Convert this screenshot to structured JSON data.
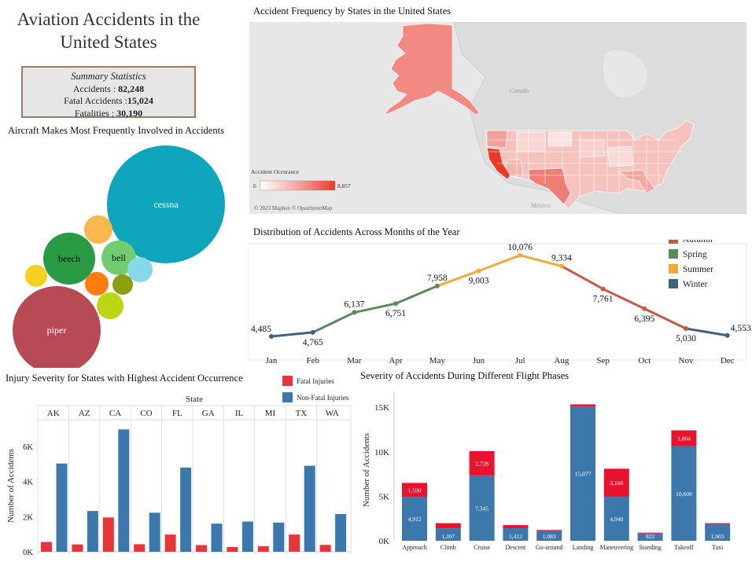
{
  "dashboard": {
    "title": "Aviation Accidents in the United States"
  },
  "summary": {
    "heading": "Summary Statistics",
    "accidents_label": "Accidents : ",
    "accidents_value": "82,248",
    "fatal_label": "Fatal Accidents :",
    "fatal_value": "15,024",
    "fatalities_label": "Fatalities : ",
    "fatalities_value": "30,190"
  },
  "bubbles": {
    "title": "Aircraft Makes Most Frequently Involved in Accidents",
    "items": [
      {
        "label": "cessna",
        "color": "#0fa5bd"
      },
      {
        "label": "piper",
        "color": "#b84a55"
      },
      {
        "label": "beech",
        "color": "#2a9a45"
      },
      {
        "label": "bell",
        "color": "#72cd72"
      },
      {
        "label": "",
        "color": "#f8b84e"
      },
      {
        "label": "",
        "color": "#f7cf1f"
      },
      {
        "label": "",
        "color": "#ff7c10"
      },
      {
        "label": "",
        "color": "#8c9e12"
      },
      {
        "label": "",
        "color": "#bcd515"
      },
      {
        "label": "",
        "color": "#86d8e8"
      }
    ]
  },
  "map": {
    "title": "Accident Frequency by States in the United States",
    "legend_title": "Accident Occurance",
    "legend_min": "6",
    "legend_max": "8,857",
    "credit": "© 2023 Mapbox © OpenStreetMap",
    "label_canada": "Canada",
    "label_mexico": "México",
    "colors": {
      "low": "#fbe3e1",
      "mid": "#f0928a",
      "high": "#e8392a"
    }
  },
  "chart_data": [
    {
      "type": "line",
      "title": "Distribution of Accidents Across Months of the Year",
      "categories": [
        "Jan",
        "Feb",
        "Mar",
        "Apr",
        "May",
        "Jun",
        "Jul",
        "Aug",
        "Sep",
        "Oct",
        "Nov",
        "Dec"
      ],
      "values": [
        4485,
        4765,
        6137,
        6751,
        7958,
        9003,
        10076,
        9334,
        7761,
        6395,
        5030,
        4553
      ],
      "value_labels": [
        "4,485",
        "4,765",
        "6,137",
        "6,751",
        "7,958",
        "9,003",
        "10,076",
        "9,334",
        "7,761",
        "6,395",
        "5,030",
        "4,553"
      ],
      "season_of_month": [
        "Winter",
        "Winter",
        "Spring",
        "Spring",
        "Spring",
        "Summer",
        "Summer",
        "Summer",
        "Autumn",
        "Autumn",
        "Autumn",
        "Winter"
      ],
      "legend": [
        {
          "name": "Autumn",
          "color": "#c7594a"
        },
        {
          "name": "Spring",
          "color": "#5a8a5c"
        },
        {
          "name": "Summer",
          "color": "#f4a93a"
        },
        {
          "name": "Winter",
          "color": "#41627e"
        }
      ],
      "ylim": [
        4000,
        10500
      ]
    },
    {
      "type": "bar",
      "title": "Injury Severity for States with Highest Accident Occurrence",
      "facet_label": "State",
      "categories": [
        "AK",
        "AZ",
        "CA",
        "CO",
        "FL",
        "GA",
        "IL",
        "MI",
        "TX",
        "WA"
      ],
      "series": [
        {
          "name": "Fatal Injuries",
          "color": "#e8353c",
          "values": [
            560,
            420,
            1950,
            430,
            980,
            380,
            270,
            320,
            980,
            390
          ]
        },
        {
          "name": "Non-Fatal Injuries",
          "color": "#3d78ad",
          "values": [
            5020,
            2320,
            6960,
            2220,
            4790,
            1600,
            1720,
            1660,
            4890,
            2150
          ]
        }
      ],
      "ylabel": "Number of Accidents",
      "yticks": [
        "0K",
        "2K",
        "4K",
        "6K"
      ],
      "ylim": [
        0,
        7600
      ]
    },
    {
      "type": "bar",
      "title": "Severity of Accidents During Different Flight Phases",
      "categories": [
        "Approach",
        "Climb",
        "Cruise",
        "Descent",
        "Go-around",
        "Landing",
        "Maneuvering",
        "Standing",
        "Takeoff",
        "Taxi"
      ],
      "series": [
        {
          "name": "Non-Fatal",
          "color": "#3d78ad",
          "values": [
            4912,
            1397,
            7345,
            1412,
            1083,
            15077,
            4940,
            822,
            10608,
            1903
          ],
          "labels": [
            "4,912",
            "1,397",
            "7,345",
            "1,412",
            "1,083",
            "15,077",
            "4,940",
            "822",
            "10,608",
            "1,903"
          ]
        },
        {
          "name": "Fatal",
          "color": "#e8142f",
          "values": [
            1590,
            580,
            2728,
            350,
            130,
            250,
            3160,
            90,
            1804,
            80
          ],
          "labels": [
            "1,590",
            "",
            "2,728",
            "",
            "",
            "",
            "3,160",
            "",
            "1,804",
            ""
          ]
        }
      ],
      "ylabel": "Number of Accidents",
      "yticks": [
        "0K",
        "5K",
        "10K",
        "15K"
      ],
      "ylim": [
        0,
        15900
      ]
    }
  ]
}
